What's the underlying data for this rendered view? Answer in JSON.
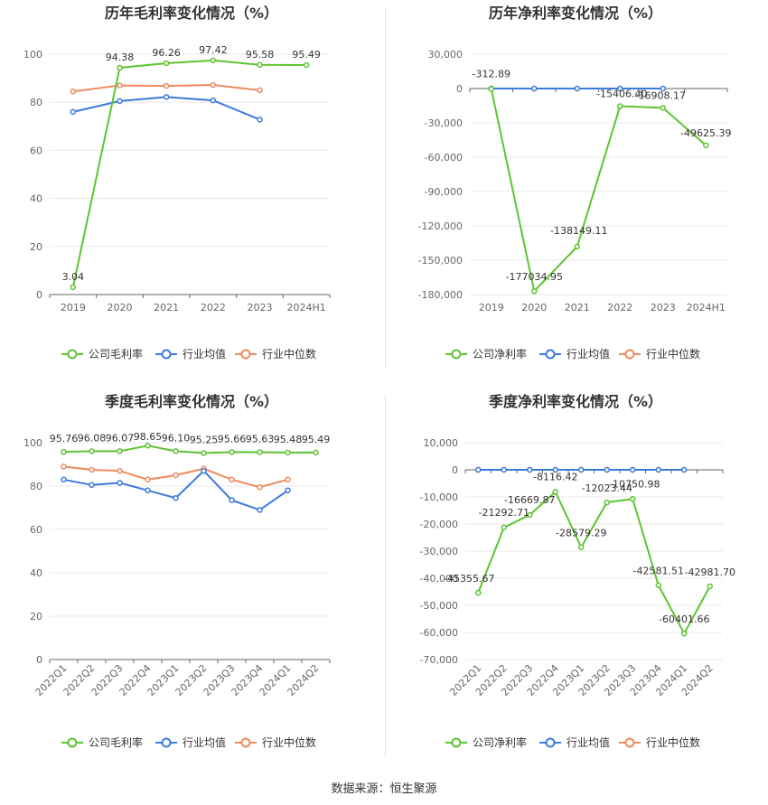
{
  "colors": {
    "company": "#5cc531",
    "industry_avg": "#3c7ae0",
    "industry_median": "#f08a5d"
  },
  "legend": [
    "公司毛利率",
    "行业均值",
    "行业中位数"
  ],
  "footer": "数据来源：恒生聚源",
  "chart_data": [
    {
      "id": "annual-gross",
      "type": "line",
      "title": "历年毛利率变化情况（%）",
      "categories": [
        "2019",
        "2020",
        "2021",
        "2022",
        "2023",
        "2024H1"
      ],
      "ylim": [
        0,
        100
      ],
      "yticks": [
        0,
        20,
        40,
        60,
        80,
        100
      ],
      "ytick_labels": [
        "0",
        "20",
        "40",
        "60",
        "80",
        "100"
      ],
      "legend": [
        "公司毛利率",
        "行业均值",
        "行业中位数"
      ],
      "series": [
        {
          "name": "公司毛利率",
          "values": [
            3.04,
            94.38,
            96.26,
            97.42,
            95.58,
            95.49
          ],
          "labels": [
            "3.04",
            "94.38",
            "96.26",
            "97.42",
            "95.58",
            "95.49"
          ]
        },
        {
          "name": "行业均值",
          "values": [
            76.0,
            80.5,
            82.2,
            80.8,
            72.8,
            null
          ]
        },
        {
          "name": "行业中位数",
          "values": [
            84.5,
            87.0,
            86.8,
            87.2,
            85.0,
            null
          ]
        }
      ]
    },
    {
      "id": "annual-net",
      "type": "line",
      "title": "历年净利率变化情况（%）",
      "categories": [
        "2019",
        "2020",
        "2021",
        "2022",
        "2023",
        "2024H1"
      ],
      "ylim": [
        -180000,
        30000
      ],
      "yticks": [
        30000,
        0,
        -30000,
        -60000,
        -90000,
        -120000,
        -150000,
        -180000
      ],
      "ytick_labels": [
        "30,000",
        "0",
        "-30,000",
        "-60,000",
        "-90,000",
        "-120,000",
        "-150,000",
        "-180,000"
      ],
      "legend": [
        "公司净利率",
        "行业均值",
        "行业中位数"
      ],
      "series": [
        {
          "name": "公司净利率",
          "values": [
            -312.89,
            -177034.95,
            -138149.11,
            -15406.4,
            -16908.17,
            -49625.39
          ],
          "labels": [
            "-312.89",
            "-177034.95",
            "-138149.11",
            "-15406.40",
            "-16908.17",
            "-49625.39"
          ]
        },
        {
          "name": "行业均值",
          "values": [
            0,
            0,
            0,
            0,
            0,
            null
          ]
        },
        {
          "name": "行业中位数",
          "values": [
            0,
            0,
            0,
            0,
            0,
            null
          ]
        }
      ]
    },
    {
      "id": "quarterly-gross",
      "type": "line",
      "title": "季度毛利率变化情况（%）",
      "categories": [
        "2022Q1",
        "2022Q2",
        "2022Q3",
        "2022Q4",
        "2023Q1",
        "2023Q2",
        "2023Q3",
        "2023Q4",
        "2024Q1",
        "2024Q2"
      ],
      "ylim": [
        0,
        100
      ],
      "yticks": [
        0,
        20,
        40,
        60,
        80,
        100
      ],
      "ytick_labels": [
        "0",
        "20",
        "40",
        "60",
        "80",
        "100"
      ],
      "legend": [
        "公司毛利率",
        "行业均值",
        "行业中位数"
      ],
      "series": [
        {
          "name": "公司毛利率",
          "values": [
            95.76,
            96.08,
            96.07,
            98.65,
            96.1,
            95.25,
            95.66,
            95.63,
            95.48,
            95.49
          ],
          "labels": [
            "95.76",
            "96.08",
            "96.07",
            "98.65",
            "96.10",
            "95.25",
            "95.66",
            "95.63",
            "95.48",
            "95.49"
          ]
        },
        {
          "name": "行业均值",
          "values": [
            83.0,
            80.5,
            81.5,
            78.0,
            74.5,
            87.0,
            73.5,
            69.0,
            78.0,
            null
          ]
        },
        {
          "name": "行业中位数",
          "values": [
            89.0,
            87.5,
            87.0,
            83.0,
            85.0,
            88.0,
            83.0,
            79.5,
            83.0,
            null
          ]
        }
      ]
    },
    {
      "id": "quarterly-net",
      "type": "line",
      "title": "季度净利率变化情况（%）",
      "categories": [
        "2022Q1",
        "2022Q2",
        "2022Q3",
        "2022Q4",
        "2023Q1",
        "2023Q2",
        "2023Q3",
        "2023Q4",
        "2024Q1",
        "2024Q2"
      ],
      "ylim": [
        -70000,
        10000
      ],
      "yticks": [
        10000,
        0,
        -10000,
        -20000,
        -30000,
        -40000,
        -50000,
        -60000,
        -70000
      ],
      "ytick_labels": [
        "10,000",
        "0",
        "-10,000",
        "-20,000",
        "-30,000",
        "-40,000",
        "-50,000",
        "-60,000",
        "-70,000"
      ],
      "legend": [
        "公司净利率",
        "行业均值",
        "行业中位数"
      ],
      "series": [
        {
          "name": "公司净利率",
          "values": [
            -45355.67,
            -21292.71,
            -16669.87,
            -8116.42,
            -28579.29,
            -12023.44,
            -10750.98,
            -42581.51,
            -60401.66,
            -42981.7
          ],
          "labels": [
            "-45355.67",
            "-21292.71",
            "-16669.87",
            "-8116.42",
            "-28579.29",
            "-12023.44",
            "-10750.98",
            "-42581.51",
            "-60401.66",
            "-42981.70"
          ]
        },
        {
          "name": "行业均值",
          "values": [
            0,
            0,
            0,
            0,
            0,
            0,
            0,
            0,
            0,
            null
          ]
        },
        {
          "name": "行业中位数",
          "values": [
            0,
            0,
            0,
            0,
            0,
            0,
            0,
            0,
            0,
            null
          ]
        }
      ]
    }
  ]
}
